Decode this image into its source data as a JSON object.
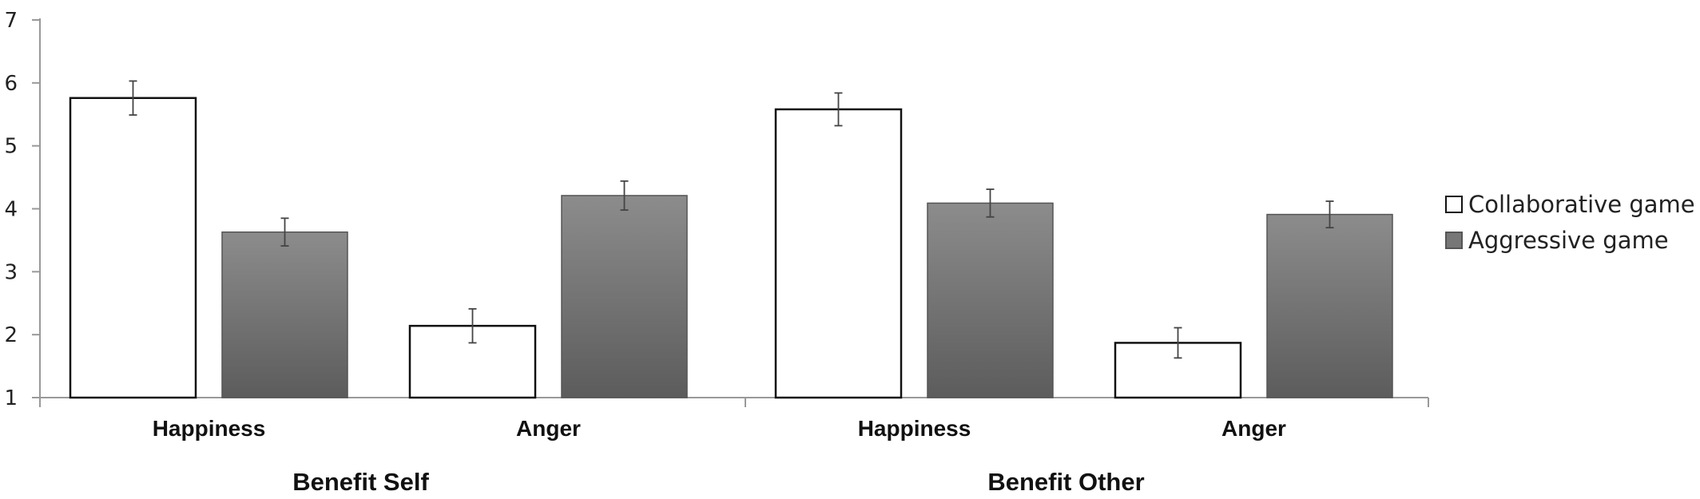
{
  "chart_data": {
    "type": "bar",
    "ylim": [
      1,
      7
    ],
    "yticks": [
      1,
      2,
      3,
      4,
      5,
      6,
      7
    ],
    "grid": false,
    "legend_position": "right",
    "series": [
      {
        "name": "Collaborative game",
        "color": "#ffffff"
      },
      {
        "name": "Aggressive game",
        "color": "#777777"
      }
    ],
    "groups": [
      {
        "label": "Benefit Self",
        "categories": [
          "Happiness",
          "Anger"
        ],
        "values": {
          "Collaborative game": [
            5.76,
            2.14
          ],
          "Aggressive game": [
            3.63,
            4.21
          ]
        },
        "errors": {
          "Collaborative game": [
            0.27,
            0.27
          ],
          "Aggressive game": [
            0.22,
            0.23
          ]
        }
      },
      {
        "label": "Benefit Other",
        "categories": [
          "Happiness",
          "Anger"
        ],
        "values": {
          "Collaborative game": [
            5.58,
            1.87
          ],
          "Aggressive game": [
            4.09,
            3.91
          ]
        },
        "errors": {
          "Collaborative game": [
            0.26,
            0.24
          ],
          "Aggressive game": [
            0.22,
            0.21
          ]
        }
      }
    ]
  }
}
